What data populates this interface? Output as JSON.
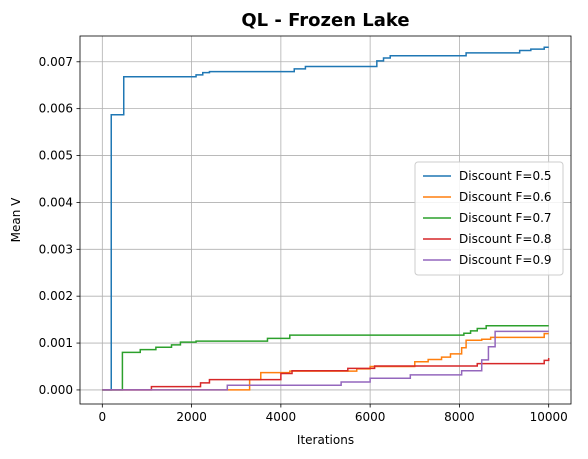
{
  "chart_data": {
    "type": "line",
    "title": "QL - Frozen Lake",
    "xlabel": "Iterations",
    "ylabel": "Mean V",
    "xlim": [
      -500,
      10500
    ],
    "ylim": [
      -0.0003,
      0.00755
    ],
    "xticks": [
      0,
      2000,
      4000,
      6000,
      8000,
      10000
    ],
    "xtick_labels": [
      "0",
      "2000",
      "4000",
      "6000",
      "8000",
      "10000"
    ],
    "yticks": [
      0.0,
      0.001,
      0.002,
      0.003,
      0.004,
      0.005,
      0.006,
      0.007
    ],
    "ytick_labels": [
      "0.000",
      "0.001",
      "0.002",
      "0.003",
      "0.004",
      "0.005",
      "0.006",
      "0.007"
    ],
    "grid": true,
    "legend_position": "center-right",
    "step": true,
    "series": [
      {
        "name": "Discount F=0.5",
        "color": "#1f77b4",
        "x": [
          0,
          200,
          480,
          2100,
          2250,
          2400,
          4300,
          4550,
          6150,
          6300,
          6450,
          8150,
          9350,
          9600,
          9900,
          10000
        ],
        "y": [
          0.0,
          0.00587,
          0.00668,
          0.00672,
          0.00677,
          0.00679,
          0.00685,
          0.0069,
          0.00702,
          0.00708,
          0.00713,
          0.00719,
          0.00724,
          0.00727,
          0.00731,
          0.00731
        ]
      },
      {
        "name": "Discount F=0.6",
        "color": "#ff7f0e",
        "x": [
          0,
          3300,
          3550,
          4200,
          5700,
          6000,
          7000,
          7300,
          7600,
          7800,
          8050,
          8150,
          8500,
          8700,
          9900,
          10000
        ],
        "y": [
          0.0,
          0.00022,
          0.00037,
          0.0004,
          0.00045,
          0.0005,
          0.0006,
          0.00065,
          0.0007,
          0.00077,
          0.0009,
          0.00106,
          0.00108,
          0.00112,
          0.0012,
          0.0012
        ]
      },
      {
        "name": "Discount F=0.7",
        "color": "#2ca02c",
        "x": [
          0,
          450,
          850,
          1200,
          1550,
          1750,
          2100,
          3700,
          4200,
          8100,
          8250,
          8400,
          8600,
          10000
        ],
        "y": [
          0.0,
          0.0008,
          0.00086,
          0.00091,
          0.00096,
          0.00102,
          0.00104,
          0.0011,
          0.00117,
          0.00121,
          0.00126,
          0.00131,
          0.00137,
          0.00137
        ]
      },
      {
        "name": "Discount F=0.8",
        "color": "#d62728",
        "x": [
          0,
          1100,
          2200,
          2400,
          4000,
          4250,
          5500,
          6100,
          8400,
          9900,
          10000
        ],
        "y": [
          0.0,
          7e-05,
          0.00015,
          0.00022,
          0.00035,
          0.00041,
          0.00046,
          0.00051,
          0.00056,
          0.00063,
          0.00068
        ]
      },
      {
        "name": "Discount F=0.9",
        "color": "#9467bd",
        "x": [
          0,
          2800,
          3800,
          5350,
          6000,
          6900,
          8050,
          8500,
          8650,
          8800,
          10000
        ],
        "y": [
          0.0,
          0.0001,
          0.0001,
          0.00017,
          0.00025,
          0.00032,
          0.00041,
          0.00064,
          0.00092,
          0.00125,
          0.00125
        ]
      }
    ]
  }
}
